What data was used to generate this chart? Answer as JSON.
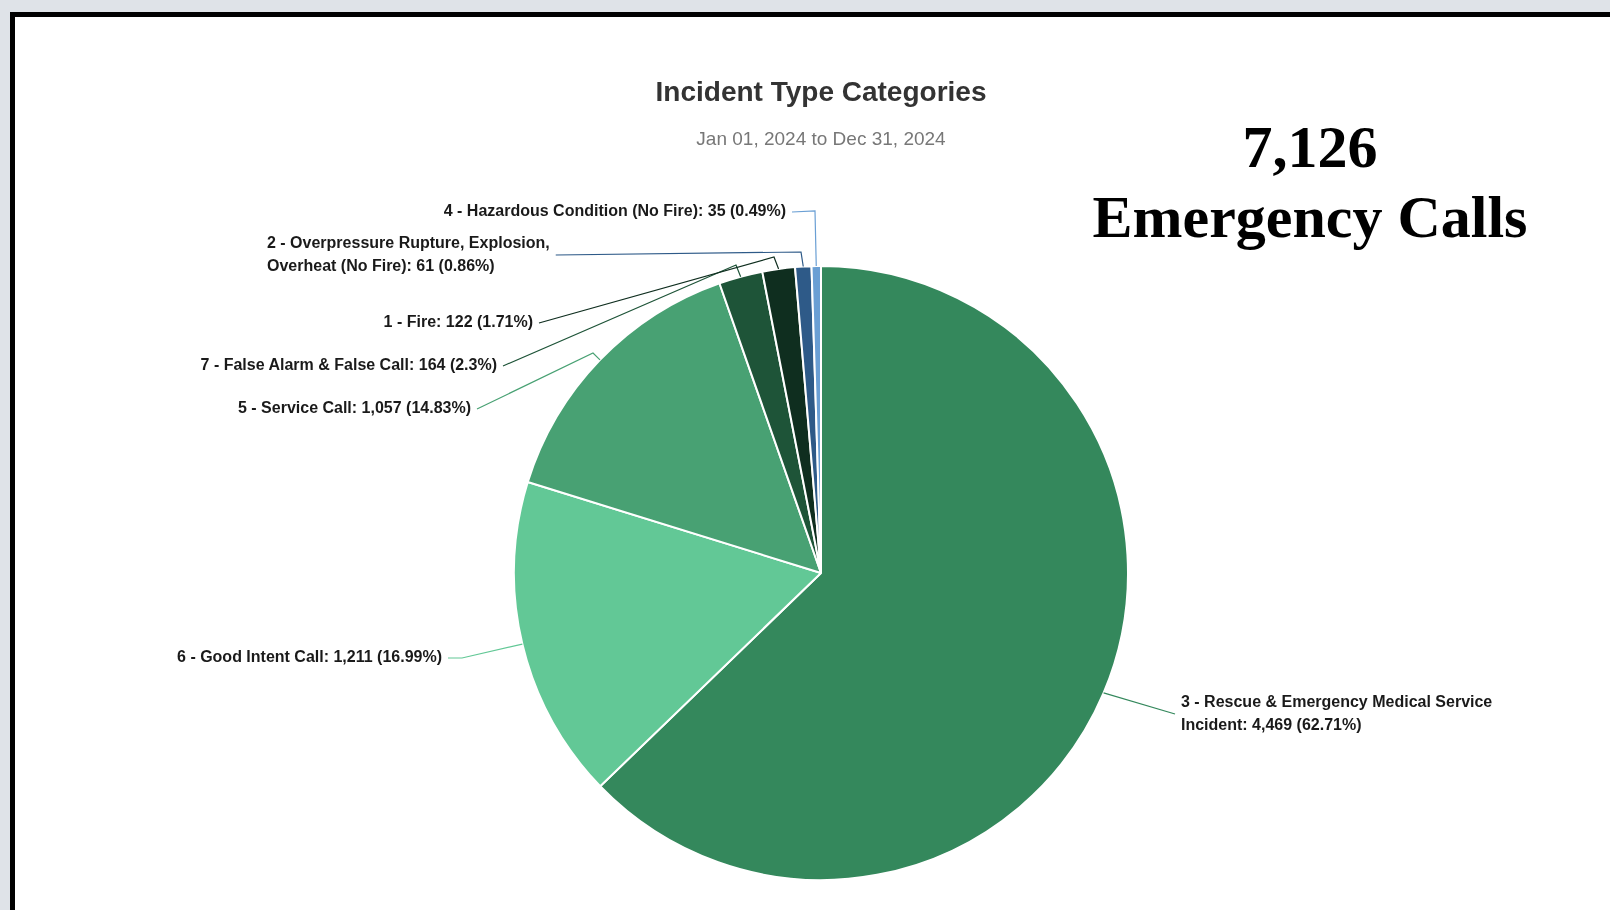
{
  "chart_data": {
    "type": "pie",
    "title": "Incident Type Categories",
    "subtitle": "Jan 01, 2024 to Dec 31, 2024",
    "categories": [
      "3 - Rescue & Emergency Medical Service Incident",
      "6 - Good Intent Call",
      "5 - Service Call",
      "7 - False Alarm & False Call",
      "1 - Fire",
      "2 - Overpressure Rupture, Explosion, Overheat (No Fire)",
      "4 - Hazardous Condition (No Fire)"
    ],
    "values": [
      4469,
      1211,
      1057,
      164,
      122,
      61,
      35
    ],
    "value_labels": [
      "4,469 (62.71%)",
      "1,211 (16.99%)",
      "1,057 (14.83%)",
      "164 (2.3%)",
      "122 (1.71%)",
      "61 (0.86%)",
      "35 (0.49%)"
    ],
    "colors": [
      "#34885c",
      "#62c896",
      "#48a173",
      "#1e5438",
      "#0f2e1f",
      "#2e5a88",
      "#6a9fd4"
    ],
    "annotations": [
      "7,126",
      "Emergency Calls"
    ]
  }
}
